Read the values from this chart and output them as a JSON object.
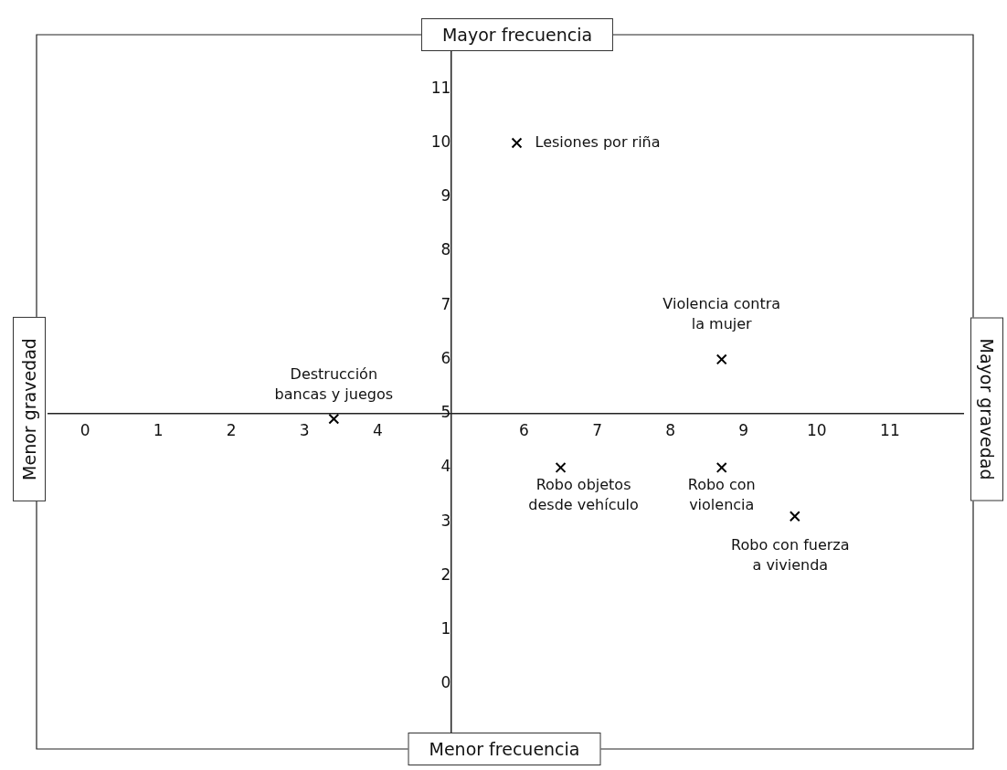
{
  "chart_data": {
    "type": "scatter",
    "marker": "cross",
    "grid": false,
    "legend": false,
    "x": [
      5.9,
      8.7,
      3.4,
      6.5,
      8.7,
      9.7
    ],
    "series": [
      {
        "color": "#000000",
        "values": [
          10,
          6,
          4.9,
          4,
          4,
          3.1
        ]
      }
    ],
    "xlim": [
      -0.5,
      12
    ],
    "ylim": [
      -1.2,
      12
    ],
    "xticks": [
      0,
      1,
      2,
      3,
      4,
      {
        "value": 5,
        "label": null
      },
      6,
      7,
      8,
      9,
      10,
      11
    ],
    "yticks": [
      0,
      1,
      2,
      3,
      4,
      5,
      6,
      7,
      8,
      9,
      10,
      11
    ],
    "annotations": [
      "Mayor frecuencia",
      "Mayor gravedad",
      "Menor frecuencia",
      "Menor gravedad",
      {
        "text": "Lesiones por riña",
        "x": 5.9,
        "y": 10
      },
      {
        "text": "Violencia contra\nla mujer",
        "x": 8.7,
        "y": 6
      },
      {
        "text": "Destrucción\nbancas y juegos",
        "x": 3.4,
        "y": 4.9
      },
      {
        "text": "Robo objetos\ndesde vehículo",
        "x": 6.5,
        "y": 4
      },
      {
        "text": "Robo con\nviolencia",
        "x": 8.7,
        "y": 4
      },
      {
        "text": "Robo con fuerza\na vivienda",
        "x": 9.7,
        "y": 3.1
      }
    ]
  }
}
